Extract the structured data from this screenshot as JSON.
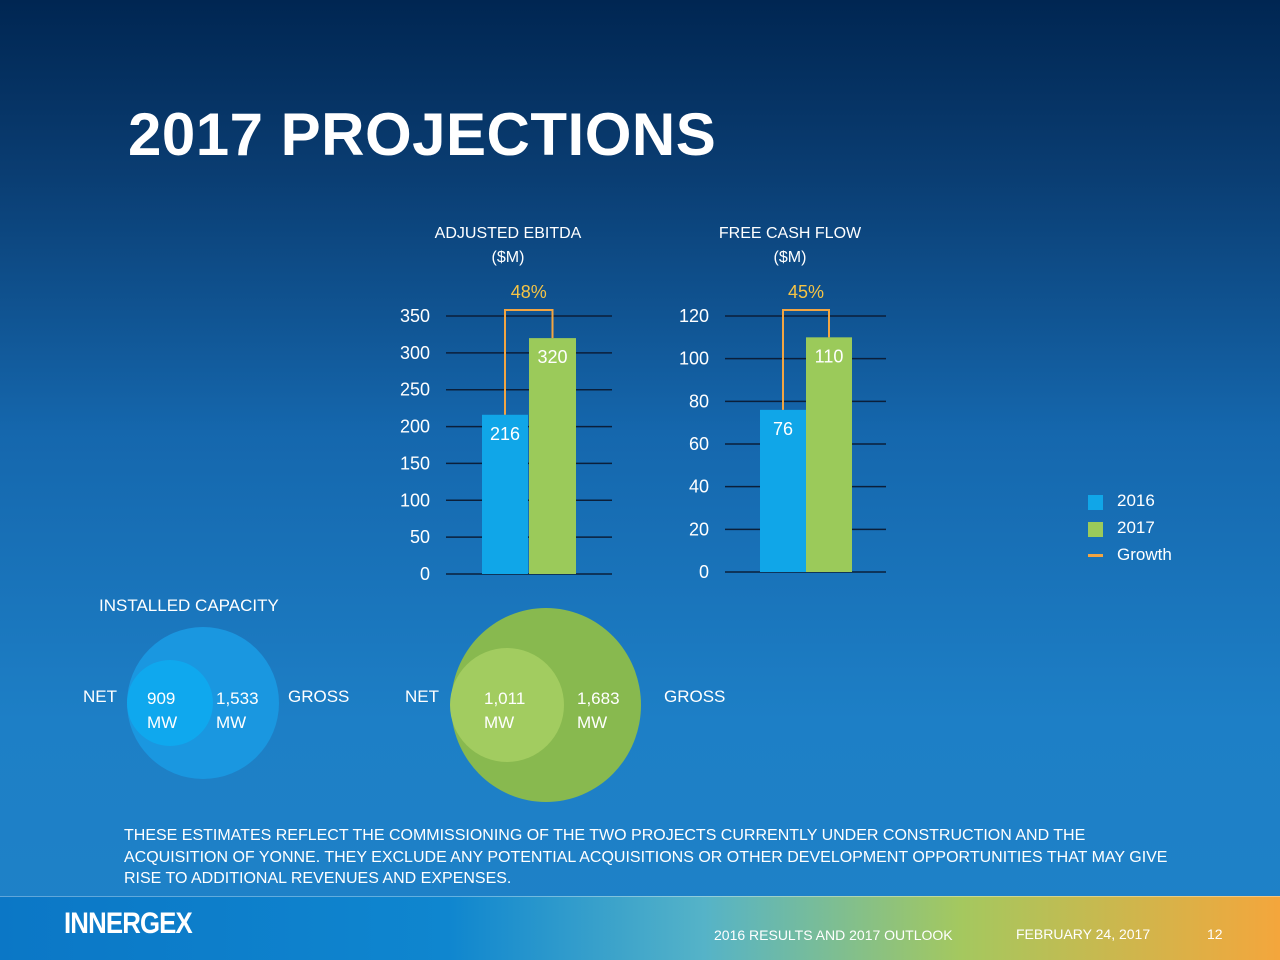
{
  "title": "2017 PROJECTIONS",
  "chart_data": [
    {
      "type": "bar",
      "title": "ADJUSTED EBITDA",
      "subtitle": "($M)",
      "categories": [
        "2016",
        "2017"
      ],
      "values": [
        216,
        320
      ],
      "data_labels": [
        "216",
        "320"
      ],
      "ylim": [
        0,
        350
      ],
      "yticks": [
        0,
        50,
        100,
        150,
        200,
        250,
        300,
        350
      ],
      "growth": "48%",
      "grid": true
    },
    {
      "type": "bar",
      "title": "FREE CASH FLOW",
      "subtitle": "($M)",
      "categories": [
        "2016",
        "2017"
      ],
      "values": [
        76,
        110
      ],
      "data_labels": [
        "76",
        "110"
      ],
      "ylim": [
        0,
        120
      ],
      "yticks": [
        0,
        20,
        40,
        60,
        80,
        100,
        120
      ],
      "growth": "45%",
      "grid": true
    }
  ],
  "legend": {
    "items": [
      {
        "label": "2016",
        "color": "#10a6e8",
        "kind": "box"
      },
      {
        "label": "2017",
        "color": "#9bca5a",
        "kind": "box"
      },
      {
        "label": "Growth",
        "color": "#f2a542",
        "kind": "line"
      }
    ]
  },
  "capacity": {
    "title": "INSTALLED CAPACITY",
    "groups": [
      {
        "net_label": "NET",
        "net_value": "909",
        "net_unit": "MW",
        "gross_value": "1,533",
        "gross_unit": "MW",
        "gross_label": "GROSS"
      },
      {
        "net_label": "NET",
        "net_value": "1,011",
        "net_unit": "MW",
        "gross_value": "1,683",
        "gross_unit": "MW",
        "gross_label": "GROSS"
      }
    ]
  },
  "footnote": "THESE ESTIMATES REFLECT THE COMMISSIONING OF THE TWO PROJECTS CURRENTLY UNDER CONSTRUCTION AND THE ACQUISITION OF YONNE. THEY EXCLUDE ANY POTENTIAL ACQUISITIONS OR OTHER DEVELOPMENT OPPORTUNITIES THAT MAY GIVE RISE TO ADDITIONAL REVENUES AND EXPENSES.",
  "footer": {
    "logo": "INNERGEX",
    "report": "2016 RESULTS AND 2017 OUTLOOK",
    "date": "FEBRUARY 24, 2017",
    "page": "12"
  },
  "colors": {
    "bar_2016": "#10a6e8",
    "bar_2017": "#9bca5a",
    "growth": "#f2a542",
    "growth_text": "#f6c445"
  }
}
